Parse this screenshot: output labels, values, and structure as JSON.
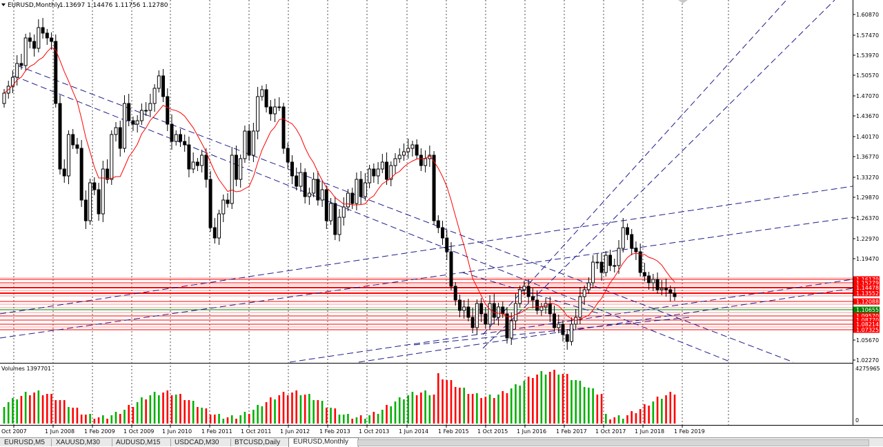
{
  "header": {
    "symbol_text": "EURUSD,Monthly",
    "ohlc_text": "1.13697 1.14476 1.11756 1.12780"
  },
  "price_axis": {
    "labels": [
      "1.60870",
      "1.57470",
      "1.53970",
      "1.50570",
      "1.47070",
      "1.43670",
      "1.40170",
      "1.36770",
      "1.33270",
      "1.29870",
      "1.26370",
      "1.22970",
      "1.19470",
      "1.05670",
      "1.02270"
    ],
    "level_labels": [
      "1.16179",
      "1.15279",
      "1.14478",
      "1.13552",
      "1.12088",
      "1.10655",
      "1.09570",
      "1.08770",
      "1.08214",
      "1.07325"
    ]
  },
  "volume": {
    "label": "Volumes 1397701",
    "axis_max": "4275965",
    "axis_min": "0"
  },
  "time_axis": {
    "labels": [
      "Oct 2007",
      "1 Jun 2008",
      "1 Feb 2009",
      "1 Oct 2009",
      "1 Jun 2010",
      "1 Feb 2011",
      "1 Oct 2011",
      "1 Jun 2012",
      "1 Feb 2013",
      "1 Oct 2013",
      "1 Jun 2014",
      "1 Feb 2015",
      "1 Oct 2015",
      "1 Jun 2016",
      "1 Feb 2017",
      "1 Oct 2017",
      "1 Jun 2018",
      "1 Feb 2019"
    ]
  },
  "tabs": [
    {
      "label": "EURUSD,M5",
      "active": false
    },
    {
      "label": "XAUUSD,M30",
      "active": false
    },
    {
      "label": "AUDUSD,M15",
      "active": false
    },
    {
      "label": "USDCAD,M30",
      "active": false
    },
    {
      "label": "BTCUSD,Daily",
      "active": false
    },
    {
      "label": "EURUSD,Monthly",
      "active": true
    }
  ],
  "colors": {
    "bull": "#000000",
    "bear": "#000000",
    "volume_up": "#00b000",
    "volume_down": "#ff0000",
    "ma": "#ff0000",
    "trendline": "#1c1c8c",
    "level": "#ff0000",
    "level_label_bg": "#ff0000",
    "green_level": "#008000"
  }
}
